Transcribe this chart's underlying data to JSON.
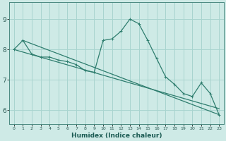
{
  "xlabel": "Humidex (Indice chaleur)",
  "bg_color": "#ceeae6",
  "grid_color": "#a8d4cf",
  "line_color": "#2e7d6e",
  "x_values": [
    0,
    1,
    2,
    3,
    4,
    5,
    6,
    7,
    8,
    9,
    10,
    11,
    12,
    13,
    14,
    15,
    16,
    17,
    18,
    19,
    20,
    21,
    22,
    23
  ],
  "series1": [
    8.0,
    8.3,
    7.85,
    7.75,
    7.75,
    7.65,
    7.6,
    7.5,
    7.3,
    7.25,
    8.3,
    8.35,
    8.6,
    9.0,
    8.85,
    8.3,
    7.7,
    7.1,
    6.85,
    6.55,
    6.45,
    6.9,
    6.55,
    5.85
  ],
  "line2_start_x": 0,
  "line2_end_x": 23,
  "line2_start_y": 8.0,
  "line2_end_y": 6.05,
  "line3_start_x": 1,
  "line3_end_x": 23,
  "line3_start_y": 8.3,
  "line3_end_y": 5.85,
  "ylim": [
    5.55,
    9.55
  ],
  "yticks": [
    6,
    7,
    8,
    9
  ],
  "xticks": [
    0,
    1,
    2,
    3,
    4,
    5,
    6,
    7,
    8,
    9,
    10,
    11,
    12,
    13,
    14,
    15,
    16,
    17,
    18,
    19,
    20,
    21,
    22,
    23
  ]
}
